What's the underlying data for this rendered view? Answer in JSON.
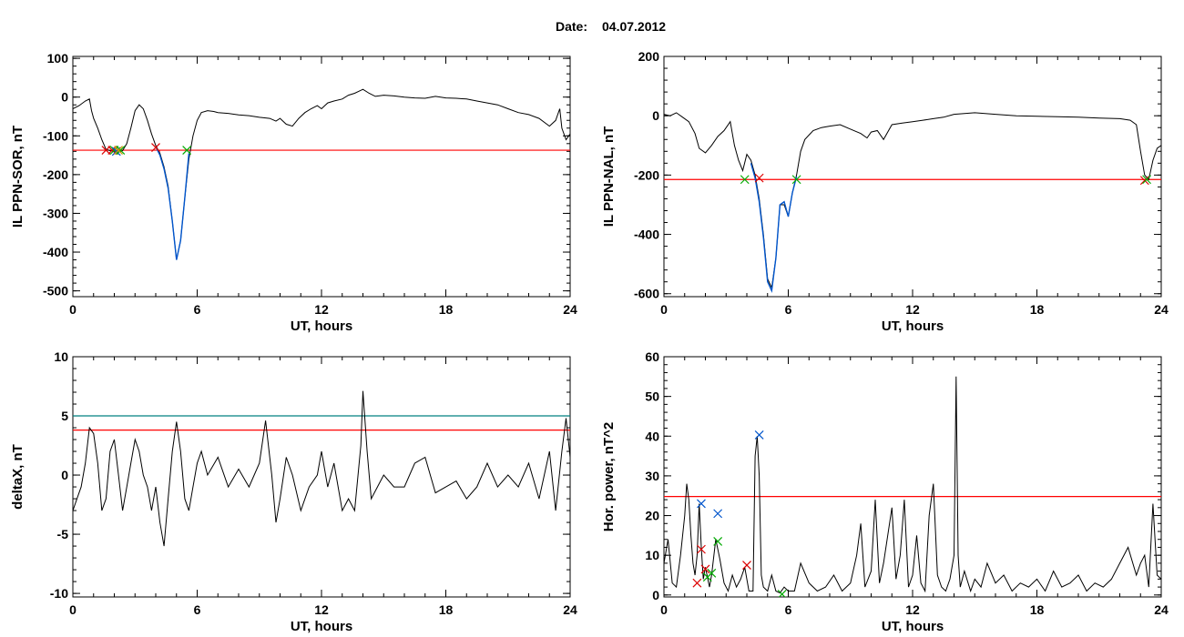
{
  "header": {
    "date_label": "Date:",
    "date_value": "04.07.2012"
  },
  "chart_data": [
    {
      "id": "p1",
      "type": "line",
      "xlabel": "UT, hours",
      "ylabel": "IL PPN-SOR, nT",
      "xlim": [
        0,
        24
      ],
      "ylim": [
        -515,
        105
      ],
      "xticks": [
        0,
        6,
        12,
        18,
        24
      ],
      "yticks": [
        -500,
        -400,
        -300,
        -200,
        -100,
        0,
        100
      ],
      "threshold_lines": [
        {
          "y": -137,
          "color": "#ff0000"
        }
      ],
      "series": [
        {
          "color": "#000000",
          "x": [
            0,
            0.3,
            0.6,
            0.8,
            0.9,
            1.0,
            1.2,
            1.4,
            1.6,
            1.8,
            2.0,
            2.2,
            2.4,
            2.6,
            2.8,
            3.0,
            3.2,
            3.4,
            3.6,
            3.8,
            4.0,
            4.2,
            4.4,
            4.6,
            4.8,
            5.0,
            5.2,
            5.4,
            5.6,
            5.8,
            6.0,
            6.2,
            6.5,
            6.8,
            7.0,
            7.5,
            8.0,
            8.5,
            9.0,
            9.5,
            9.8,
            10.0,
            10.3,
            10.6,
            10.9,
            11.2,
            11.5,
            11.8,
            12.0,
            12.3,
            12.6,
            13.0,
            13.3,
            13.6,
            13.8,
            14.0,
            14.3,
            14.6,
            15.0,
            15.5,
            16.0,
            16.5,
            17.0,
            17.5,
            18.0,
            18.5,
            19.0,
            19.5,
            20.0,
            20.5,
            21.0,
            21.5,
            22.0,
            22.5,
            23.0,
            23.3,
            23.5,
            23.6,
            23.8,
            24.0
          ],
          "y": [
            -30,
            -22,
            -10,
            -5,
            -35,
            -55,
            -80,
            -110,
            -135,
            -138,
            -140,
            -142,
            -138,
            -120,
            -80,
            -35,
            -20,
            -30,
            -60,
            -95,
            -125,
            -145,
            -180,
            -230,
            -320,
            -420,
            -370,
            -260,
            -160,
            -100,
            -60,
            -40,
            -35,
            -37,
            -40,
            -42,
            -46,
            -48,
            -52,
            -55,
            -62,
            -55,
            -70,
            -75,
            -55,
            -40,
            -30,
            -22,
            -30,
            -15,
            -10,
            -5,
            5,
            10,
            15,
            20,
            10,
            2,
            5,
            3,
            0,
            -2,
            -3,
            2,
            -2,
            -3,
            -5,
            -10,
            -15,
            -20,
            -30,
            -40,
            -45,
            -55,
            -75,
            -60,
            -30,
            -80,
            -110,
            -95
          ]
        },
        {
          "color": "#0055cc",
          "x": [
            4.0,
            4.2,
            4.4,
            4.6,
            4.8,
            5.0,
            5.2,
            5.4,
            5.6
          ],
          "y": [
            -128,
            -150,
            -185,
            -235,
            -320,
            -420,
            -370,
            -260,
            -145
          ]
        }
      ],
      "markers": [
        {
          "x": 1.6,
          "y": -137,
          "color": "#dd0000"
        },
        {
          "x": 1.9,
          "y": -137,
          "color": "#dd0000"
        },
        {
          "x": 2.0,
          "y": -137,
          "color": "#00aa00"
        },
        {
          "x": 2.1,
          "y": -140,
          "color": "#0055cc"
        },
        {
          "x": 2.3,
          "y": -137,
          "color": "#00aa00"
        },
        {
          "x": 4.0,
          "y": -130,
          "color": "#dd0000"
        },
        {
          "x": 5.5,
          "y": -137,
          "color": "#00aa00"
        },
        {
          "x": 2.2,
          "y": -137,
          "color": "#cc9900"
        }
      ]
    },
    {
      "id": "p2",
      "type": "line",
      "xlabel": "UT, hours",
      "ylabel": "IL PPN-NAL, nT",
      "xlim": [
        0,
        24
      ],
      "ylim": [
        -610,
        200
      ],
      "xticks": [
        0,
        6,
        12,
        18,
        24
      ],
      "yticks": [
        -600,
        -400,
        -200,
        0,
        200
      ],
      "threshold_lines": [
        {
          "y": -215,
          "color": "#ff0000"
        }
      ],
      "series": [
        {
          "color": "#000000",
          "x": [
            0,
            0.3,
            0.6,
            0.9,
            1.2,
            1.5,
            1.7,
            2.0,
            2.3,
            2.6,
            2.9,
            3.2,
            3.4,
            3.6,
            3.8,
            4.0,
            4.2,
            4.4,
            4.6,
            4.8,
            5.0,
            5.2,
            5.4,
            5.6,
            5.8,
            6.0,
            6.2,
            6.4,
            6.6,
            6.8,
            7.2,
            7.6,
            8.0,
            8.5,
            9.0,
            9.5,
            9.8,
            10.0,
            10.3,
            10.6,
            11.0,
            11.5,
            12.0,
            12.5,
            13.0,
            13.5,
            14.0,
            15.0,
            16.0,
            17.0,
            18.0,
            19.0,
            20.0,
            21.0,
            22.0,
            22.5,
            22.8,
            23.0,
            23.2,
            23.4,
            23.6,
            23.8,
            24.0
          ],
          "y": [
            5,
            0,
            10,
            -5,
            -20,
            -60,
            -110,
            -125,
            -100,
            -70,
            -50,
            -20,
            -100,
            -150,
            -185,
            -130,
            -150,
            -200,
            -280,
            -400,
            -550,
            -580,
            -480,
            -300,
            -300,
            -340,
            -260,
            -200,
            -120,
            -80,
            -50,
            -40,
            -35,
            -30,
            -45,
            -60,
            -75,
            -55,
            -50,
            -80,
            -30,
            -25,
            -20,
            -15,
            -10,
            -5,
            5,
            10,
            5,
            0,
            -2,
            -3,
            -5,
            -8,
            -10,
            -15,
            -30,
            -120,
            -200,
            -215,
            -150,
            -110,
            -100
          ]
        },
        {
          "color": "#0055cc",
          "x": [
            4.2,
            4.4,
            4.6,
            4.8,
            5.0,
            5.2,
            5.4,
            5.6,
            5.8,
            6.0,
            6.2,
            6.4
          ],
          "y": [
            -160,
            -210,
            -290,
            -410,
            -560,
            -590,
            -480,
            -300,
            -290,
            -340,
            -260,
            -205
          ]
        }
      ],
      "markers": [
        {
          "x": 3.9,
          "y": -215,
          "color": "#00aa00"
        },
        {
          "x": 4.6,
          "y": -210,
          "color": "#dd0000"
        },
        {
          "x": 6.4,
          "y": -215,
          "color": "#00aa00"
        },
        {
          "x": 23.2,
          "y": -218,
          "color": "#dd0000"
        },
        {
          "x": 23.3,
          "y": -215,
          "color": "#00aa00"
        }
      ]
    },
    {
      "id": "p3",
      "type": "line",
      "xlabel": "UT, hours",
      "ylabel": "deltaX, nT",
      "xlim": [
        0,
        24
      ],
      "ylim": [
        -10.3,
        10
      ],
      "xticks": [
        0,
        6,
        12,
        18,
        24
      ],
      "yticks": [
        -10,
        -5,
        0,
        5,
        10
      ],
      "threshold_lines": [
        {
          "y": 5,
          "color": "#008080"
        },
        {
          "y": 3.8,
          "color": "#ff0000"
        }
      ],
      "series": [
        {
          "color": "#000000",
          "x": [
            0,
            0.2,
            0.4,
            0.6,
            0.8,
            1.0,
            1.2,
            1.4,
            1.6,
            1.8,
            2.0,
            2.2,
            2.4,
            2.6,
            2.8,
            3.0,
            3.2,
            3.4,
            3.6,
            3.8,
            4.0,
            4.2,
            4.4,
            4.6,
            4.8,
            5.0,
            5.2,
            5.4,
            5.6,
            5.8,
            6.0,
            6.2,
            6.5,
            7.0,
            7.5,
            8.0,
            8.5,
            9.0,
            9.3,
            9.6,
            9.8,
            10.0,
            10.3,
            10.6,
            11.0,
            11.4,
            11.8,
            12.0,
            12.3,
            12.6,
            13.0,
            13.3,
            13.6,
            13.9,
            14.0,
            14.2,
            14.4,
            14.7,
            15.0,
            15.5,
            16.0,
            16.5,
            17.0,
            17.5,
            18.0,
            18.5,
            19.0,
            19.5,
            20.0,
            20.5,
            21.0,
            21.5,
            22.0,
            22.5,
            23.0,
            23.3,
            23.6,
            23.8,
            24.0
          ],
          "y": [
            -3,
            -2,
            -1,
            1,
            4,
            3.5,
            1,
            -3,
            -2,
            2,
            3,
            0,
            -3,
            -1,
            1,
            3,
            2,
            0,
            -1,
            -3,
            -1,
            -4,
            -6,
            -2,
            2,
            4.5,
            2,
            -2,
            -3,
            -1,
            1,
            2,
            0,
            1.5,
            -1,
            0.5,
            -1,
            1,
            4.6,
            0,
            -4,
            -2,
            1.5,
            0,
            -3,
            -1,
            0,
            2,
            -1,
            1,
            -3,
            -2,
            -3,
            2.5,
            7.1,
            2,
            -2,
            -1,
            0,
            -1,
            -1,
            1,
            1.5,
            -1.5,
            -1,
            -0.5,
            -2,
            -1,
            1,
            -1,
            0,
            -1,
            1,
            -2,
            2,
            -3,
            2,
            4.8,
            1.5
          ]
        }
      ],
      "markers": []
    },
    {
      "id": "p4",
      "type": "line",
      "xlabel": "UT, hours",
      "ylabel": "Hor. power, nT^2",
      "xlim": [
        0,
        24
      ],
      "ylim": [
        -0.5,
        60
      ],
      "xticks": [
        0,
        6,
        12,
        18,
        24
      ],
      "yticks": [
        0,
        10,
        20,
        30,
        40,
        50,
        60
      ],
      "threshold_lines": [
        {
          "y": 24.8,
          "color": "#ff0000"
        }
      ],
      "series": [
        {
          "color": "#000000",
          "x": [
            0,
            0.2,
            0.4,
            0.6,
            0.8,
            1.0,
            1.1,
            1.2,
            1.3,
            1.4,
            1.5,
            1.6,
            1.7,
            1.8,
            1.9,
            2.0,
            2.2,
            2.3,
            2.5,
            2.7,
            2.9,
            3.1,
            3.3,
            3.5,
            3.7,
            3.9,
            4.1,
            4.3,
            4.4,
            4.5,
            4.6,
            4.7,
            4.8,
            5.0,
            5.2,
            5.4,
            5.6,
            5.8,
            6.0,
            6.3,
            6.6,
            7.0,
            7.4,
            7.8,
            8.2,
            8.6,
            9.0,
            9.3,
            9.5,
            9.7,
            10.0,
            10.2,
            10.4,
            10.6,
            10.8,
            11.0,
            11.2,
            11.4,
            11.6,
            11.8,
            12.0,
            12.2,
            12.4,
            12.6,
            12.8,
            13.0,
            13.2,
            13.4,
            13.6,
            13.8,
            14.0,
            14.1,
            14.2,
            14.3,
            14.5,
            14.8,
            15.0,
            15.3,
            15.6,
            16.0,
            16.4,
            16.8,
            17.2,
            17.6,
            18.0,
            18.4,
            18.8,
            19.2,
            19.6,
            20.0,
            20.4,
            20.8,
            21.2,
            21.6,
            22.0,
            22.4,
            22.8,
            23.0,
            23.2,
            23.4,
            23.6,
            23.8,
            24.0
          ],
          "y": [
            8,
            14,
            3,
            2,
            10,
            20,
            28,
            24,
            15,
            8,
            5,
            10,
            23,
            12,
            4,
            7,
            2,
            5,
            14,
            9,
            3,
            1,
            5,
            2,
            4,
            7,
            1,
            1,
            35,
            40,
            30,
            5,
            2,
            1,
            5,
            1,
            0.5,
            2,
            1,
            1,
            8,
            3,
            1,
            2,
            5,
            1,
            3,
            10,
            18,
            2,
            6,
            24,
            3,
            8,
            15,
            22,
            4,
            10,
            24,
            2,
            5,
            15,
            3,
            1,
            20,
            28,
            5,
            2,
            1,
            4,
            10,
            55,
            10,
            2,
            6,
            1,
            4,
            2,
            8,
            3,
            5,
            1,
            3,
            2,
            4,
            1,
            6,
            2,
            3,
            5,
            1,
            3,
            2,
            4,
            8,
            12,
            5,
            8,
            10,
            2,
            23,
            5,
            4
          ]
        }
      ],
      "markers": [
        {
          "x": 1.6,
          "y": 3.0,
          "color": "#dd0000"
        },
        {
          "x": 1.8,
          "y": 11.5,
          "color": "#dd0000"
        },
        {
          "x": 1.8,
          "y": 23.0,
          "color": "#0055cc"
        },
        {
          "x": 2.0,
          "y": 6.5,
          "color": "#dd0000"
        },
        {
          "x": 2.1,
          "y": 4.5,
          "color": "#00aa00"
        },
        {
          "x": 2.3,
          "y": 5.5,
          "color": "#00aa00"
        },
        {
          "x": 2.6,
          "y": 20.5,
          "color": "#0055cc"
        },
        {
          "x": 2.6,
          "y": 13.5,
          "color": "#00aa00"
        },
        {
          "x": 4.0,
          "y": 7.5,
          "color": "#dd0000"
        },
        {
          "x": 4.6,
          "y": 40.3,
          "color": "#0055cc"
        },
        {
          "x": 5.7,
          "y": 0.2,
          "color": "#00aa00"
        }
      ]
    }
  ]
}
